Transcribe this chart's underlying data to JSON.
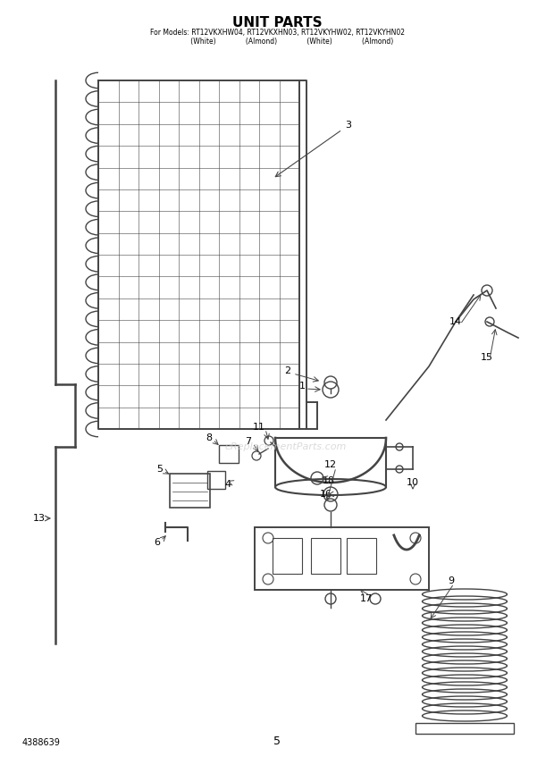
{
  "title": "UNIT PARTS",
  "subtitle_line1": "For Models: RT12VKXHW04, RT12VKXHN03, RT12VKYHW02, RT12VKYHN02",
  "subtitle_line2": "              (White)              (Almond)              (White)              (Almond)",
  "bg_color": "#ffffff",
  "text_color": "#000000",
  "diagram_color": "#444444",
  "watermark": "eReplacementParts.com",
  "part_number": "4388639",
  "page_number": "5",
  "fig_width": 6.2,
  "fig_height": 8.56,
  "dpi": 100
}
